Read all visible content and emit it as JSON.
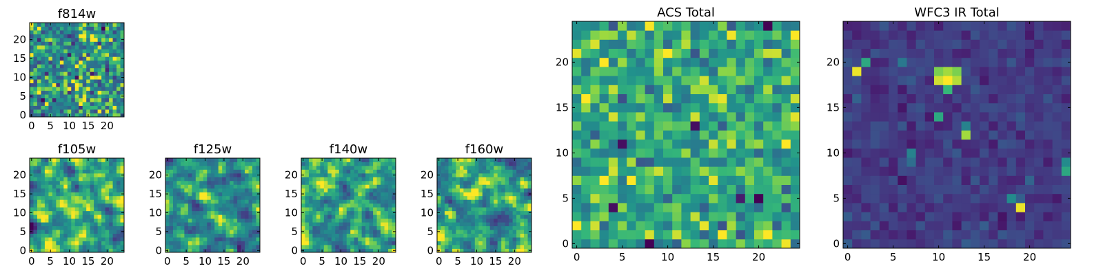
{
  "chart_data": [
    {
      "type": "heatmap",
      "title": "f814w",
      "xticks": [
        0,
        5,
        10,
        15,
        20
      ],
      "yticks": [
        0,
        5,
        10,
        15,
        20
      ],
      "xlim": [
        0,
        25
      ],
      "ylim": [
        0,
        25
      ],
      "colormap": "viridis",
      "style": "noise",
      "seed": 11,
      "mean": 0.6,
      "sd": 0.2
    },
    {
      "type": "heatmap",
      "title": "f105w",
      "xticks": [
        0,
        5,
        10,
        15,
        20
      ],
      "yticks": [
        0,
        5,
        10,
        15,
        20
      ],
      "xlim": [
        0,
        25
      ],
      "ylim": [
        0,
        25
      ],
      "colormap": "viridis",
      "style": "smooth",
      "seed": 23,
      "mean": 0.65,
      "sd": 0.25
    },
    {
      "type": "heatmap",
      "title": "f125w",
      "xticks": [
        0,
        5,
        10,
        15,
        20
      ],
      "yticks": [
        0,
        5,
        10,
        15,
        20
      ],
      "xlim": [
        0,
        25
      ],
      "ylim": [
        0,
        25
      ],
      "colormap": "viridis",
      "style": "smooth",
      "seed": 37,
      "mean": 0.62,
      "sd": 0.25
    },
    {
      "type": "heatmap",
      "title": "f140w",
      "xticks": [
        0,
        5,
        10,
        15,
        20
      ],
      "yticks": [
        0,
        5,
        10,
        15,
        20
      ],
      "xlim": [
        0,
        25
      ],
      "ylim": [
        0,
        25
      ],
      "colormap": "viridis",
      "style": "smooth",
      "seed": 41,
      "mean": 0.68,
      "sd": 0.25
    },
    {
      "type": "heatmap",
      "title": "f160w",
      "xticks": [
        0,
        5,
        10,
        15,
        20
      ],
      "yticks": [
        0,
        5,
        10,
        15,
        20
      ],
      "xlim": [
        0,
        25
      ],
      "ylim": [
        0,
        25
      ],
      "colormap": "viridis",
      "style": "smooth",
      "seed": 53,
      "mean": 0.64,
      "sd": 0.25
    },
    {
      "type": "heatmap",
      "title": "ACS Total",
      "xticks": [
        0,
        5,
        10,
        15,
        20
      ],
      "yticks": [
        0,
        5,
        10,
        15,
        20
      ],
      "xlim": [
        0,
        25
      ],
      "ylim": [
        0,
        25
      ],
      "colormap": "viridis",
      "style": "noise",
      "seed": 67,
      "mean": 0.7,
      "sd": 0.14,
      "hotspots": [
        [
          14,
          18,
          0.95
        ],
        [
          13,
          17,
          0.9
        ],
        [
          10,
          17,
          0.85
        ],
        [
          15,
          17,
          0.88
        ]
      ],
      "coldspots": [
        [
          8,
          0,
          0.0
        ],
        [
          20,
          5,
          0.0
        ],
        [
          5,
          11,
          0.05
        ],
        [
          13,
          13,
          0.05
        ],
        [
          4,
          4,
          0.05
        ],
        [
          21,
          24,
          0.0
        ],
        [
          18,
          5,
          0.1
        ]
      ]
    },
    {
      "type": "heatmap",
      "title": "WFC3 IR Total",
      "xticks": [
        0,
        5,
        10,
        15,
        20
      ],
      "yticks": [
        0,
        5,
        10,
        15,
        20
      ],
      "xlim": [
        0,
        25
      ],
      "ylim": [
        0,
        25
      ],
      "colormap": "viridis",
      "style": "sparse",
      "seed": 79,
      "mean": 0.22,
      "sd": 0.06,
      "hotspots": [
        [
          11,
          18,
          1.0
        ],
        [
          10,
          18,
          0.95
        ],
        [
          12,
          18,
          0.92
        ],
        [
          11,
          19,
          0.9
        ],
        [
          10,
          19,
          0.85
        ],
        [
          12,
          19,
          0.85
        ],
        [
          11,
          17,
          0.75
        ],
        [
          1,
          19,
          0.98
        ],
        [
          2,
          20,
          0.7
        ],
        [
          19,
          4,
          0.98
        ],
        [
          18,
          5,
          0.6
        ],
        [
          13,
          12,
          0.9
        ],
        [
          13,
          13,
          0.55
        ],
        [
          10,
          14,
          0.7
        ],
        [
          24,
          8,
          0.7
        ],
        [
          24,
          9,
          0.6
        ],
        [
          6,
          20,
          0.5
        ],
        [
          7,
          10,
          0.55
        ],
        [
          7,
          9,
          0.45
        ]
      ]
    }
  ]
}
